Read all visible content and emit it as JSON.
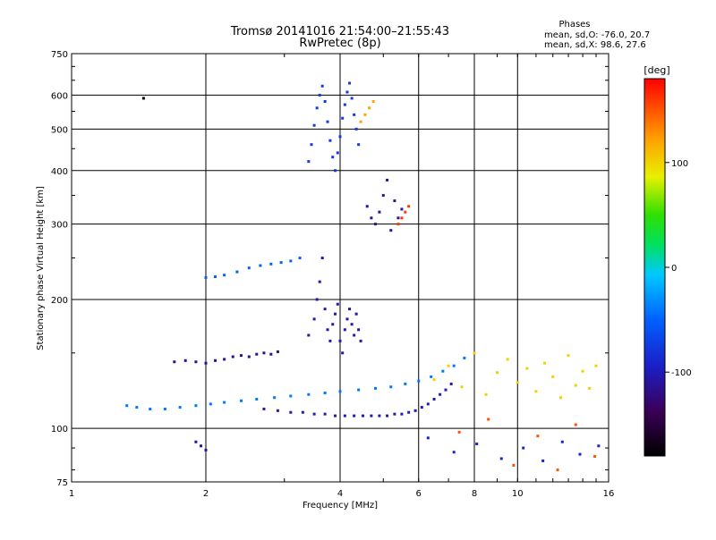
{
  "chart_data": {
    "type": "scatter",
    "title": "Tromsø 20141016 21:54:00–21:55:43",
    "subtitle": "RwPretec (8p)",
    "xlabel": "Frequency [MHz]",
    "ylabel": "Stationary phase Virtual Height [km]",
    "xscale": "log",
    "yscale": "log",
    "xlim": [
      1,
      16
    ],
    "ylim": [
      75,
      750
    ],
    "grid": true,
    "x_ticks": [
      1,
      2,
      4,
      6,
      8,
      10,
      16
    ],
    "x_tick_labels": [
      "1",
      "2",
      "4",
      "6",
      "8",
      "10",
      "16"
    ],
    "y_ticks": [
      75,
      100,
      200,
      300,
      400,
      500,
      600,
      750
    ],
    "y_tick_labels": [
      "75",
      "100",
      "200",
      "300",
      "400",
      "500",
      "600",
      "750"
    ],
    "phase_stats": {
      "heading": "Phases",
      "line_o": "mean, sd,O: -76.0, 20.7",
      "line_x": "mean, sd,X:  98.6, 27.6"
    },
    "colorbar": {
      "unit": "[deg]",
      "range": [
        -180,
        180
      ],
      "ticks": [
        100,
        0,
        -100
      ],
      "tick_labels": [
        "100",
        "0",
        "-100"
      ]
    },
    "series": [
      {
        "x": [
          1.33,
          1.4,
          1.5,
          1.62,
          1.75,
          1.9,
          2.05,
          2.2,
          2.4,
          2.6,
          2.85,
          3.1,
          3.4,
          3.7,
          4.0,
          4.4,
          4.8,
          5.2,
          5.6,
          6.0,
          6.4,
          6.8,
          7.2,
          7.6
        ],
        "y": [
          113,
          112,
          111,
          111,
          112,
          113,
          114,
          115,
          116,
          117,
          118,
          119,
          120,
          121,
          122,
          123,
          124,
          125,
          127,
          129,
          132,
          136,
          140,
          146
        ],
        "phase": -40
      },
      {
        "x": [
          2.7,
          2.9,
          3.1,
          3.3,
          3.5,
          3.7,
          3.9,
          4.1,
          4.3,
          4.5,
          4.7,
          4.9,
          5.1,
          5.3,
          5.5,
          5.7,
          5.9,
          6.1,
          6.3,
          6.5,
          6.7,
          6.9,
          7.1
        ],
        "y": [
          111,
          110,
          109,
          109,
          108,
          108,
          107,
          107,
          107,
          107,
          107,
          107,
          107,
          108,
          108,
          109,
          110,
          112,
          114,
          117,
          120,
          123,
          127
        ],
        "phase": -100
      },
      {
        "x": [
          1.7,
          1.8,
          1.9,
          2.0,
          2.1,
          2.2,
          2.3,
          2.4,
          2.5,
          2.6,
          2.7,
          2.8,
          2.9
        ],
        "y": [
          143,
          144,
          143,
          142,
          144,
          145,
          147,
          148,
          147,
          149,
          150,
          149,
          151
        ],
        "phase": -115
      },
      {
        "x": [
          2.0,
          2.1,
          2.2,
          2.35,
          2.5,
          2.65,
          2.8,
          2.95,
          3.1,
          3.25
        ],
        "y": [
          225,
          226,
          228,
          232,
          237,
          240,
          242,
          244,
          246,
          250
        ],
        "phase": -50
      },
      {
        "x": [
          3.4,
          3.5,
          3.55,
          3.6,
          3.65,
          3.7,
          3.75,
          3.8,
          3.85,
          3.9,
          3.95,
          4.0,
          4.05,
          4.1,
          4.15,
          4.2,
          4.25,
          4.3,
          4.35,
          4.4,
          4.45
        ],
        "y": [
          165,
          180,
          200,
          220,
          250,
          190,
          170,
          160,
          175,
          185,
          195,
          160,
          150,
          170,
          180,
          190,
          175,
          165,
          185,
          170,
          160
        ],
        "phase": -105
      },
      {
        "x": [
          3.4,
          3.45,
          3.5,
          3.55,
          3.6,
          3.65,
          3.7,
          3.75,
          3.8,
          3.85,
          3.9,
          3.95,
          4.0,
          4.05,
          4.1,
          4.15,
          4.2,
          4.25,
          4.3,
          4.35,
          4.4
        ],
        "y": [
          420,
          460,
          510,
          560,
          600,
          630,
          580,
          520,
          470,
          430,
          400,
          440,
          480,
          530,
          570,
          610,
          640,
          590,
          540,
          500,
          460
        ],
        "phase": -75
      },
      {
        "x": [
          4.6,
          4.7,
          4.8,
          4.9,
          5.0,
          5.1,
          5.2,
          5.3,
          5.4,
          5.5
        ],
        "y": [
          330,
          310,
          300,
          320,
          350,
          380,
          290,
          340,
          310,
          325
        ],
        "phase": -110
      },
      {
        "x": [
          5.4,
          5.5,
          5.6,
          5.7
        ],
        "y": [
          300,
          310,
          320,
          330
        ],
        "phase": 160
      },
      {
        "x": [
          4.45,
          4.55,
          4.65,
          4.75
        ],
        "y": [
          520,
          540,
          560,
          580
        ],
        "phase": 120
      },
      {
        "x": [
          6.5,
          7.0,
          7.5,
          8.0,
          8.5,
          9.0,
          9.5,
          10.0,
          10.5,
          11.0,
          11.5,
          12.0,
          12.5,
          13.0,
          13.5,
          14.0,
          14.5,
          15.0
        ],
        "y": [
          130,
          140,
          125,
          150,
          120,
          135,
          145,
          128,
          138,
          122,
          142,
          132,
          118,
          148,
          126,
          136,
          124,
          140
        ],
        "phase": 100
      },
      {
        "x": [
          6.3,
          7.2,
          8.1,
          9.2,
          10.3,
          11.4,
          12.6,
          13.8,
          15.2
        ],
        "y": [
          95,
          88,
          92,
          85,
          90,
          84,
          93,
          87,
          91
        ],
        "phase": -90
      },
      {
        "x": [
          7.4,
          8.6,
          9.8,
          11.1,
          12.3,
          13.5,
          14.9
        ],
        "y": [
          98,
          105,
          82,
          96,
          80,
          102,
          86
        ],
        "phase": 150
      },
      {
        "x": [
          1.9,
          1.95,
          2.0
        ],
        "y": [
          93,
          91,
          89
        ],
        "phase": -110
      },
      {
        "x": [
          1.45
        ],
        "y": [
          590
        ],
        "phase": -170
      }
    ]
  }
}
